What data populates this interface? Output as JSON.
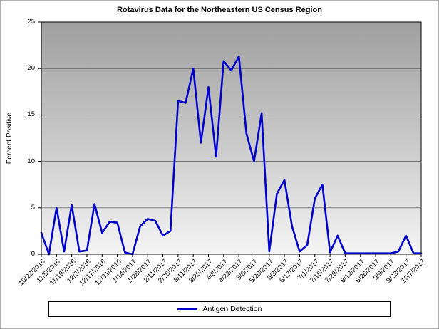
{
  "chart_data": {
    "type": "line",
    "title": "Rotavirus Data for the Northeastern US Census Region",
    "xlabel": "",
    "ylabel": "Percent Positive",
    "ylim": [
      0,
      25
    ],
    "y_ticks": [
      0,
      5,
      10,
      15,
      20,
      25
    ],
    "grid": "horizontal",
    "legend_position": "bottom",
    "line_color": "#0000CC",
    "x_tick_labels": [
      "10/22/2016",
      "11/5/2016",
      "11/19/2016",
      "12/3/2016",
      "12/17/2016",
      "12/31/2016",
      "1/14/2017",
      "1/28/2017",
      "2/11/2017",
      "2/25/2017",
      "3/11/2017",
      "3/25/2017",
      "4/8/2017",
      "4/22/2017",
      "5/6/2017",
      "5/20/2017",
      "6/3/2017",
      "6/17/2017",
      "7/1/2017",
      "7/15/2017",
      "7/29/2017",
      "8/12/2017",
      "8/26/2017",
      "9/9/2017",
      "9/23/2017",
      "10/7/2017"
    ],
    "x": [
      "10/22/2016",
      "10/29/2016",
      "11/5/2016",
      "11/12/2016",
      "11/19/2016",
      "11/26/2016",
      "12/3/2016",
      "12/10/2016",
      "12/17/2016",
      "12/24/2016",
      "12/31/2016",
      "1/7/2017",
      "1/14/2017",
      "1/21/2017",
      "1/28/2017",
      "2/4/2017",
      "2/11/2017",
      "2/18/2017",
      "2/25/2017",
      "3/4/2017",
      "3/11/2017",
      "3/18/2017",
      "3/25/2017",
      "4/1/2017",
      "4/8/2017",
      "4/15/2017",
      "4/22/2017",
      "4/29/2017",
      "5/6/2017",
      "5/13/2017",
      "5/20/2017",
      "5/27/2017",
      "6/3/2017",
      "6/10/2017",
      "6/17/2017",
      "6/24/2017",
      "7/1/2017",
      "7/8/2017",
      "7/15/2017",
      "7/22/2017",
      "7/29/2017",
      "8/5/2017",
      "8/12/2017",
      "8/19/2017",
      "8/26/2017",
      "9/2/2017",
      "9/9/2017",
      "9/16/2017",
      "9/23/2017",
      "9/30/2017",
      "10/7/2017"
    ],
    "series": [
      {
        "name": "Antigen Detection",
        "values": [
          2.3,
          0,
          5.0,
          0.3,
          5.3,
          0.3,
          0.4,
          5.4,
          2.3,
          3.5,
          3.4,
          0.2,
          0,
          3.0,
          3.8,
          3.6,
          2.0,
          2.5,
          16.5,
          16.3,
          20.0,
          12.0,
          18.0,
          10.5,
          20.8,
          19.8,
          21.3,
          13.0,
          10.0,
          15.2,
          0.3,
          6.5,
          8.0,
          3.0,
          0.3,
          1.0,
          6.0,
          7.5,
          0.2,
          2.0,
          0.1,
          0.1,
          0.1,
          0.1,
          0.1,
          0.1,
          0.1,
          0.3,
          2.0,
          0.1,
          0.1
        ]
      }
    ]
  }
}
